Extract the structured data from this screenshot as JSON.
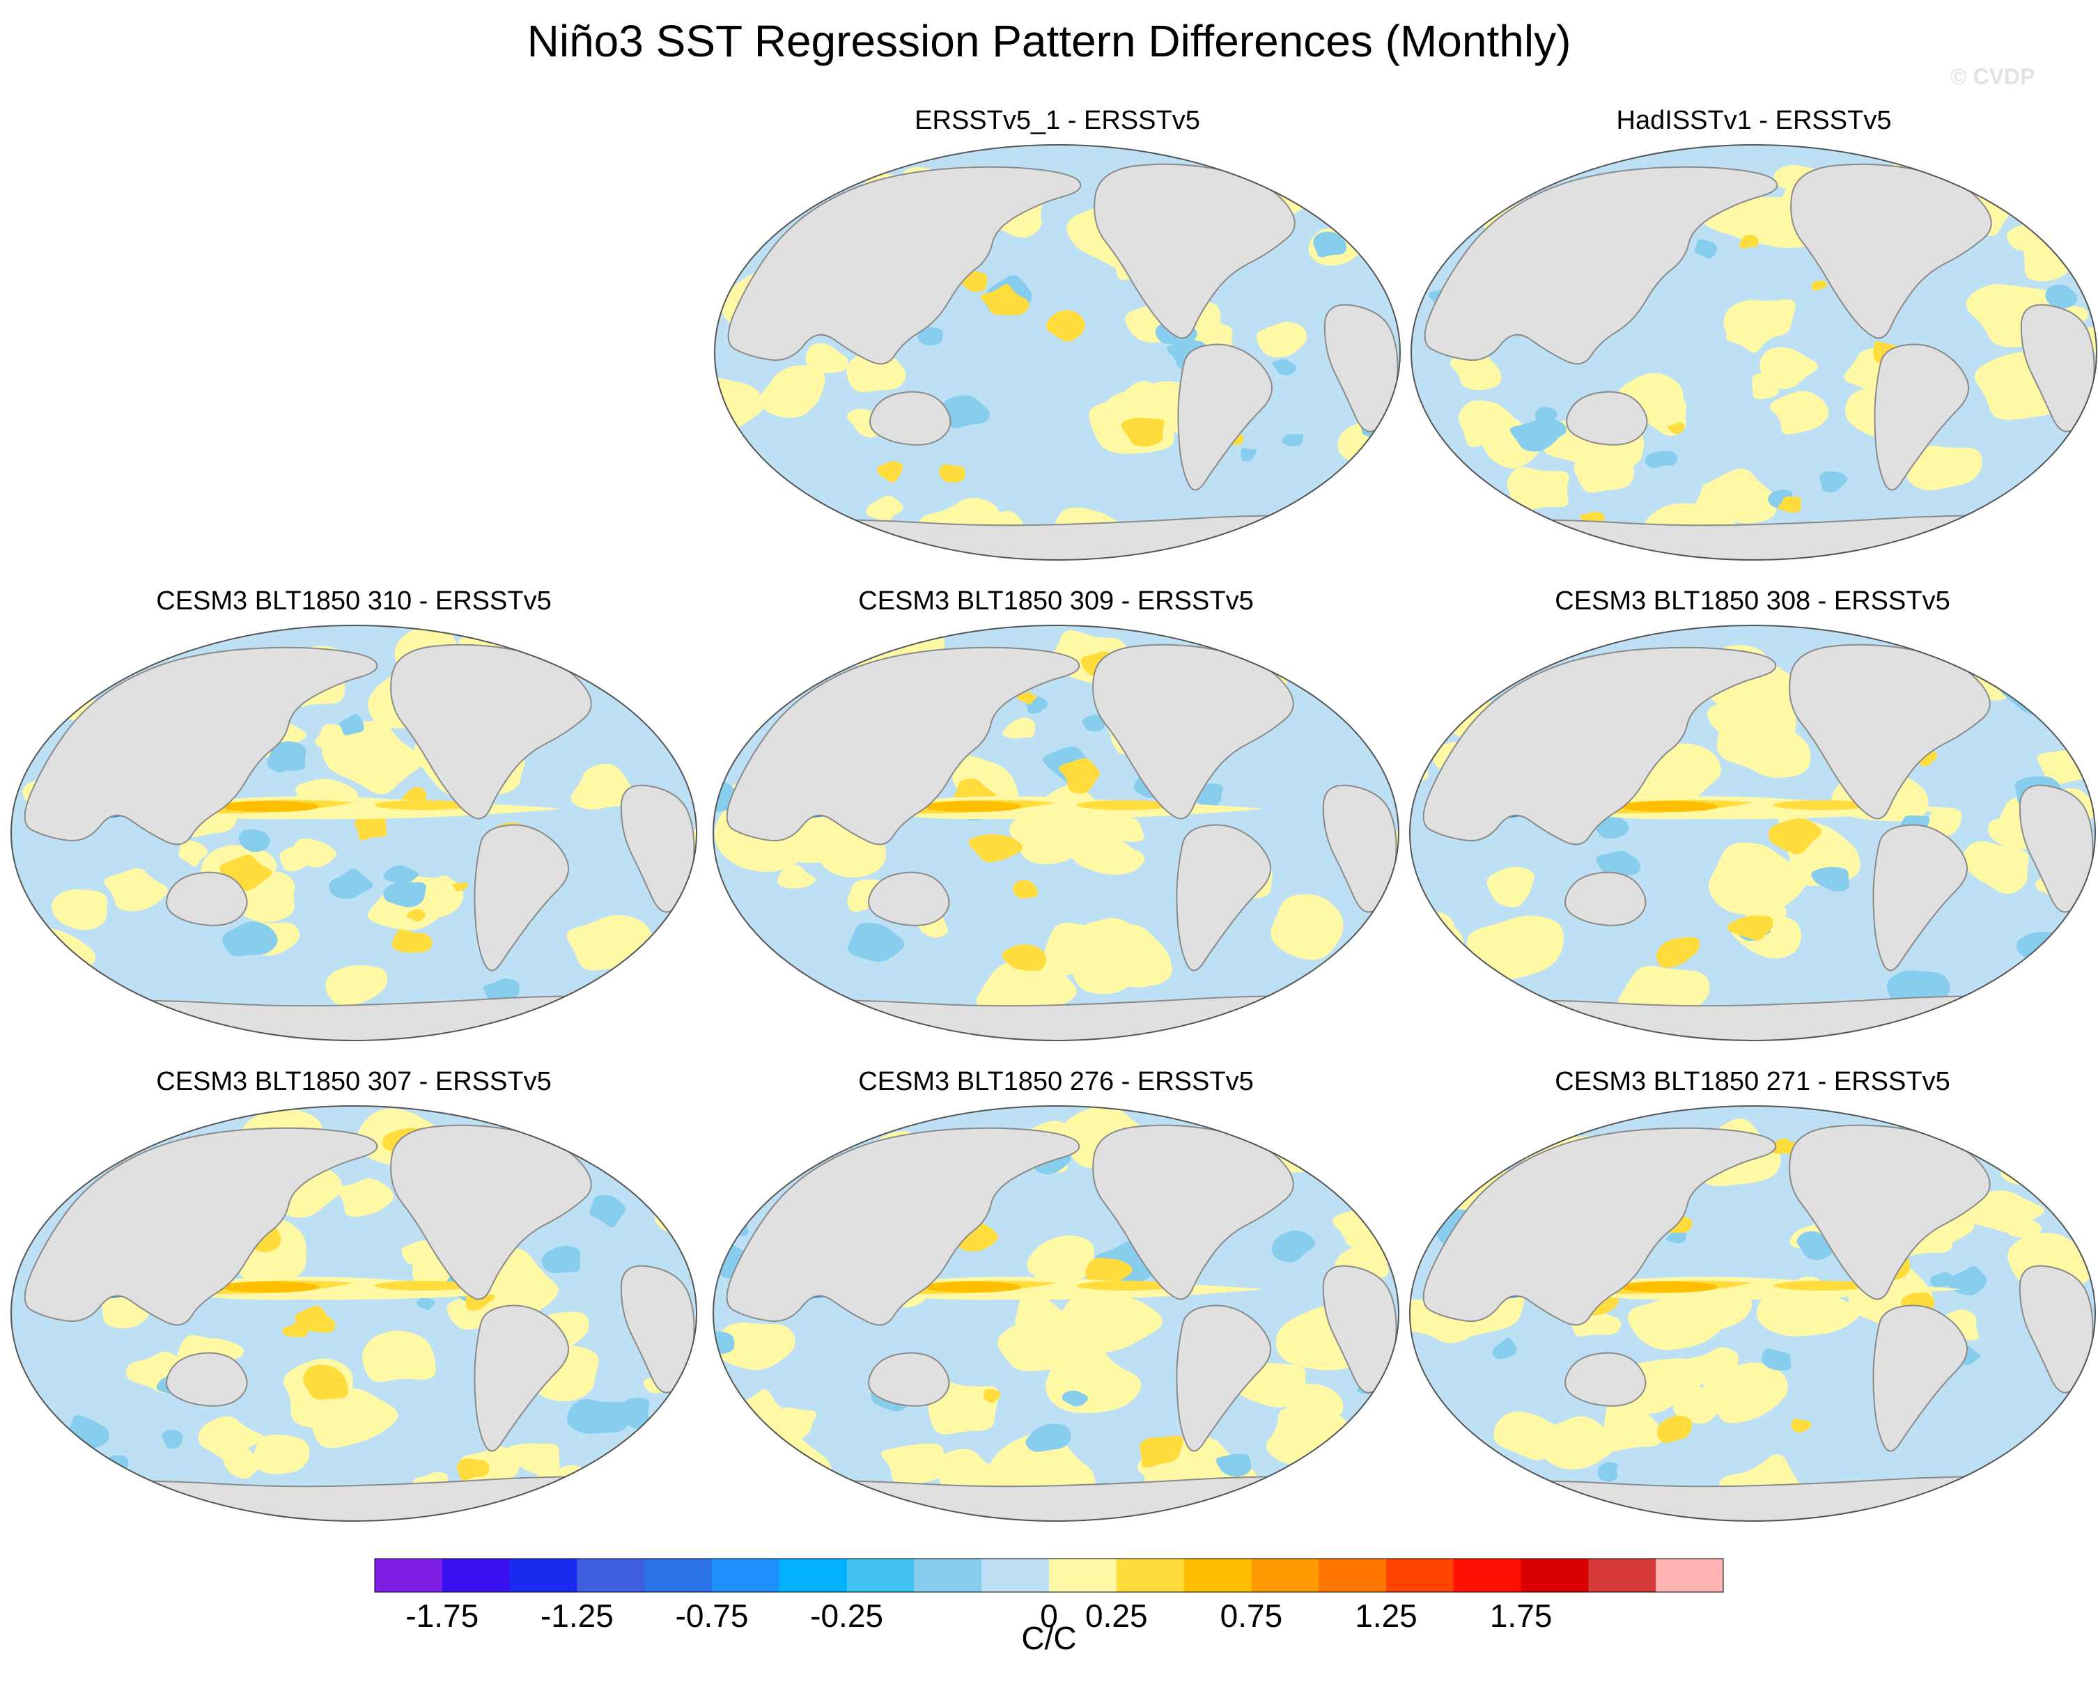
{
  "figure": {
    "title": "Niño3 SST Regression Pattern Differences (Monthly)",
    "watermark": "© CVDP"
  },
  "panels": [
    {
      "id": "p1",
      "title": "ERSSTv5_1 - ERSSTv5",
      "position": "row1-col2"
    },
    {
      "id": "p2",
      "title": "HadISSTv1 - ERSSTv5",
      "position": "row1-col3"
    },
    {
      "id": "p3",
      "title": "CESM3 BLT1850 310 - ERSSTv5",
      "position": "row2-col1"
    },
    {
      "id": "p4",
      "title": "CESM3 BLT1850 309 - ERSSTv5",
      "position": "row2-col2"
    },
    {
      "id": "p5",
      "title": "CESM3 BLT1850 308 - ERSSTv5",
      "position": "row2-col3"
    },
    {
      "id": "p6",
      "title": "CESM3 BLT1850 307 - ERSSTv5",
      "position": "row3-col1"
    },
    {
      "id": "p7",
      "title": "CESM3 BLT1850 276 - ERSSTv5",
      "position": "row3-col2"
    },
    {
      "id": "p8",
      "title": "CESM3 BLT1850 271 - ERSSTv5",
      "position": "row3-col3"
    }
  ],
  "map_style": {
    "projection": "Robinson-like ellipse, Pacific-centered",
    "land_color": "#e0e0e0",
    "coast_color": "#8a8a8a",
    "ocean_base_color": "#bde0f5"
  },
  "colorbar": {
    "unit": "C/C",
    "tick_labels": [
      "-1.75",
      "-1.25",
      "-0.75",
      "-0.25",
      "0",
      "0.25",
      "0.75",
      "1.25",
      "1.75"
    ],
    "colors": [
      "#7e1fe6",
      "#3b10f0",
      "#1a2af0",
      "#3d5fe0",
      "#2a72e6",
      "#1e90ff",
      "#00b2ff",
      "#43c3f2",
      "#87cdee",
      "#bde0f5",
      "#fff9a6",
      "#ffdc3c",
      "#ffbe00",
      "#ff9900",
      "#ff7700",
      "#ff4400",
      "#ff0f00",
      "#d90000",
      "#d63a3a",
      "#ffb3b3"
    ]
  }
}
